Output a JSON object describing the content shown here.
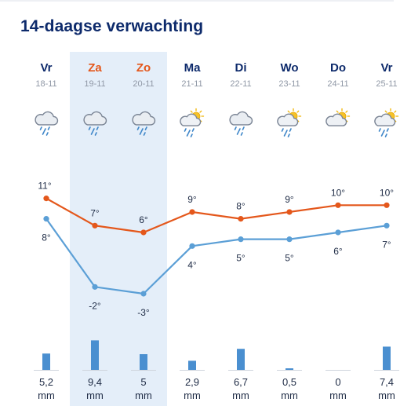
{
  "header": {
    "title": "14-daagse verwachting"
  },
  "colors": {
    "max_line": "#e4571b",
    "min_line": "#5b9fd6",
    "precip_bar": "#4a8fd0",
    "weekend_band": "#e4eef9"
  },
  "days": [
    {
      "name": "Vr",
      "date": "18-11",
      "weekend": false,
      "icon": "rain-cloud-icon",
      "max_label": "11°",
      "min_label": "8°",
      "precip_value": "5,2",
      "precip_unit": "mm"
    },
    {
      "name": "Za",
      "date": "19-11",
      "weekend": true,
      "icon": "rain-cloud-icon",
      "max_label": "7°",
      "min_label": "-2°",
      "precip_value": "9,4",
      "precip_unit": "mm"
    },
    {
      "name": "Zo",
      "date": "20-11",
      "weekend": true,
      "icon": "rain-cloud-icon",
      "max_label": "6°",
      "min_label": "-3°",
      "precip_value": "5",
      "precip_unit": "mm"
    },
    {
      "name": "Ma",
      "date": "21-11",
      "weekend": false,
      "icon": "sun-cloud-drizzle-icon",
      "max_label": "9°",
      "min_label": "4°",
      "precip_value": "2,9",
      "precip_unit": "mm"
    },
    {
      "name": "Di",
      "date": "22-11",
      "weekend": false,
      "icon": "rain-cloud-icon",
      "max_label": "8°",
      "min_label": "5°",
      "precip_value": "6,7",
      "precip_unit": "mm"
    },
    {
      "name": "Wo",
      "date": "23-11",
      "weekend": false,
      "icon": "sun-cloud-drizzle-icon",
      "max_label": "9°",
      "min_label": "5°",
      "precip_value": "0,5",
      "precip_unit": "mm"
    },
    {
      "name": "Do",
      "date": "24-11",
      "weekend": false,
      "icon": "sun-cloud-icon",
      "max_label": "10°",
      "min_label": "6°",
      "precip_value": "0",
      "precip_unit": "mm"
    },
    {
      "name": "Vr",
      "date": "25-11",
      "weekend": false,
      "icon": "sun-cloud-drizzle-icon",
      "max_label": "10°",
      "min_label": "7°",
      "precip_value": "7,4",
      "precip_unit": "mm"
    }
  ],
  "chart_data": {
    "type": "line",
    "categories": [
      "Vr 18-11",
      "Za 19-11",
      "Zo 20-11",
      "Ma 21-11",
      "Di 22-11",
      "Wo 23-11",
      "Do 24-11",
      "Vr 25-11"
    ],
    "series": [
      {
        "values": [
          11,
          7,
          6,
          9,
          8,
          9,
          10,
          10
        ]
      },
      {
        "values": [
          8,
          -2,
          -3,
          4,
          5,
          5,
          6,
          7
        ]
      }
    ],
    "precipitation_mm": [
      5.2,
      9.4,
      5,
      2.9,
      6.7,
      0.5,
      0,
      7.4
    ]
  }
}
